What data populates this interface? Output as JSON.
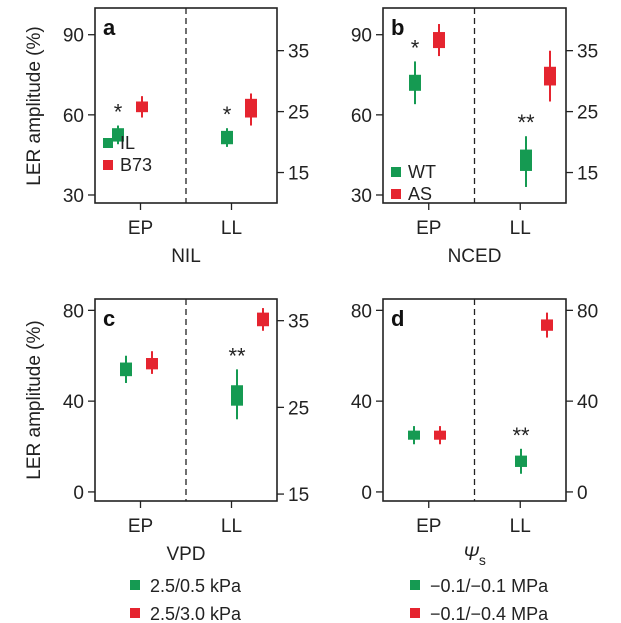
{
  "colors": {
    "green": "#159a52",
    "red": "#e5242f",
    "axis": "#222222"
  },
  "y_axis_label": "LER amplitude (%)",
  "chart_data": [
    {
      "id": "a",
      "panel_label": "a",
      "type": "scatter",
      "xlabel": "NIL",
      "categories": [
        "EP",
        "LL"
      ],
      "ylim_left": [
        27,
        100
      ],
      "yticks_left": [
        30,
        60,
        90
      ],
      "ylim_right": [
        10,
        42
      ],
      "yticks_right": [
        15,
        25,
        35
      ],
      "series": [
        {
          "name": "IL",
          "color": "green",
          "values": [
            {
              "category": "EP",
              "y": 52,
              "box_low": 50,
              "box_high": 55,
              "whisker_low": 49,
              "whisker_high": 56
            },
            {
              "category": "LL",
              "y": 51,
              "box_low": 49,
              "box_high": 54,
              "whisker_low": 48,
              "whisker_high": 55
            }
          ]
        },
        {
          "name": "B73",
          "color": "red",
          "values": [
            {
              "category": "EP",
              "y": 63,
              "box_low": 61,
              "box_high": 65,
              "whisker_low": 59,
              "whisker_high": 67
            },
            {
              "category": "LL",
              "y": 62,
              "box_low": 59,
              "box_high": 66,
              "whisker_low": 56,
              "whisker_high": 68
            }
          ]
        }
      ],
      "annotations": [
        {
          "category": "EP",
          "text": "*"
        },
        {
          "category": "LL",
          "text": "*"
        }
      ],
      "legend_position": "bottom-left"
    },
    {
      "id": "b",
      "panel_label": "b",
      "type": "scatter",
      "xlabel": "NCED",
      "categories": [
        "EP",
        "LL"
      ],
      "ylim_left": [
        27,
        100
      ],
      "yticks_left": [
        30,
        60,
        90
      ],
      "ylim_right": [
        10,
        42
      ],
      "yticks_right": [
        15,
        25,
        35
      ],
      "series": [
        {
          "name": "WT",
          "color": "green",
          "values": [
            {
              "category": "EP",
              "y": 72,
              "box_low": 69,
              "box_high": 75,
              "whisker_low": 64,
              "whisker_high": 80
            },
            {
              "category": "LL",
              "y": 43,
              "box_low": 39,
              "box_high": 47,
              "whisker_low": 33,
              "whisker_high": 52
            }
          ]
        },
        {
          "name": "AS",
          "color": "red",
          "values": [
            {
              "category": "EP",
              "y": 88,
              "box_low": 85,
              "box_high": 91,
              "whisker_low": 82,
              "whisker_high": 94
            },
            {
              "category": "LL",
              "y": 74,
              "box_low": 71,
              "box_high": 78,
              "whisker_low": 65,
              "whisker_high": 84
            }
          ]
        }
      ],
      "annotations": [
        {
          "category": "EP",
          "text": "*"
        },
        {
          "category": "LL",
          "text": "**"
        }
      ],
      "legend_position": "bottom-left"
    },
    {
      "id": "c",
      "panel_label": "c",
      "type": "scatter",
      "xlabel": "VPD",
      "categories": [
        "EP",
        "LL"
      ],
      "ylim_left": [
        -4,
        85
      ],
      "yticks_left": [
        0,
        40,
        80
      ],
      "ylim_right": [
        14.2,
        37.5
      ],
      "yticks_right": [
        15,
        25,
        35
      ],
      "series": [
        {
          "name": "2.5/0.5 kPa",
          "color": "green",
          "values": [
            {
              "category": "EP",
              "y": 54,
              "box_low": 51,
              "box_high": 57,
              "whisker_low": 48,
              "whisker_high": 60
            },
            {
              "category": "LL",
              "y": 43,
              "box_low": 38,
              "box_high": 47,
              "whisker_low": 32,
              "whisker_high": 54
            }
          ]
        },
        {
          "name": "2.5/3.0 kPa",
          "color": "red",
          "values": [
            {
              "category": "EP",
              "y": 57,
              "box_low": 54,
              "box_high": 59,
              "whisker_low": 52,
              "whisker_high": 62
            },
            {
              "category": "LL",
              "y": 76,
              "box_low": 73,
              "box_high": 79,
              "whisker_low": 71,
              "whisker_high": 81
            }
          ]
        }
      ],
      "annotations": [
        {
          "category": "LL",
          "text": "**"
        }
      ],
      "legend_position": "below"
    },
    {
      "id": "d",
      "panel_label": "d",
      "type": "scatter",
      "xlabel": "Ψ",
      "xlabel_sub": "s",
      "categories": [
        "EP",
        "LL"
      ],
      "ylim_left": [
        -4,
        85
      ],
      "yticks_left": [
        0,
        40,
        80
      ],
      "ylim_right": [
        -4,
        85
      ],
      "yticks_right": [
        0,
        40,
        80
      ],
      "series": [
        {
          "name": "−0.1/−0.1 MPa",
          "color": "green",
          "values": [
            {
              "category": "EP",
              "y": 25,
              "box_low": 23,
              "box_high": 27,
              "whisker_low": 21,
              "whisker_high": 29
            },
            {
              "category": "LL",
              "y": 14,
              "box_low": 11,
              "box_high": 16,
              "whisker_low": 8,
              "whisker_high": 19
            }
          ]
        },
        {
          "name": "−0.1/−0.4 MPa",
          "color": "red",
          "values": [
            {
              "category": "EP",
              "y": 25,
              "box_low": 23,
              "box_high": 27,
              "whisker_low": 21,
              "whisker_high": 29
            },
            {
              "category": "LL",
              "y": 74,
              "box_low": 71,
              "box_high": 76,
              "whisker_low": 68,
              "whisker_high": 79
            }
          ]
        }
      ],
      "annotations": [
        {
          "category": "LL",
          "text": "**"
        }
      ],
      "legend_position": "below"
    }
  ]
}
